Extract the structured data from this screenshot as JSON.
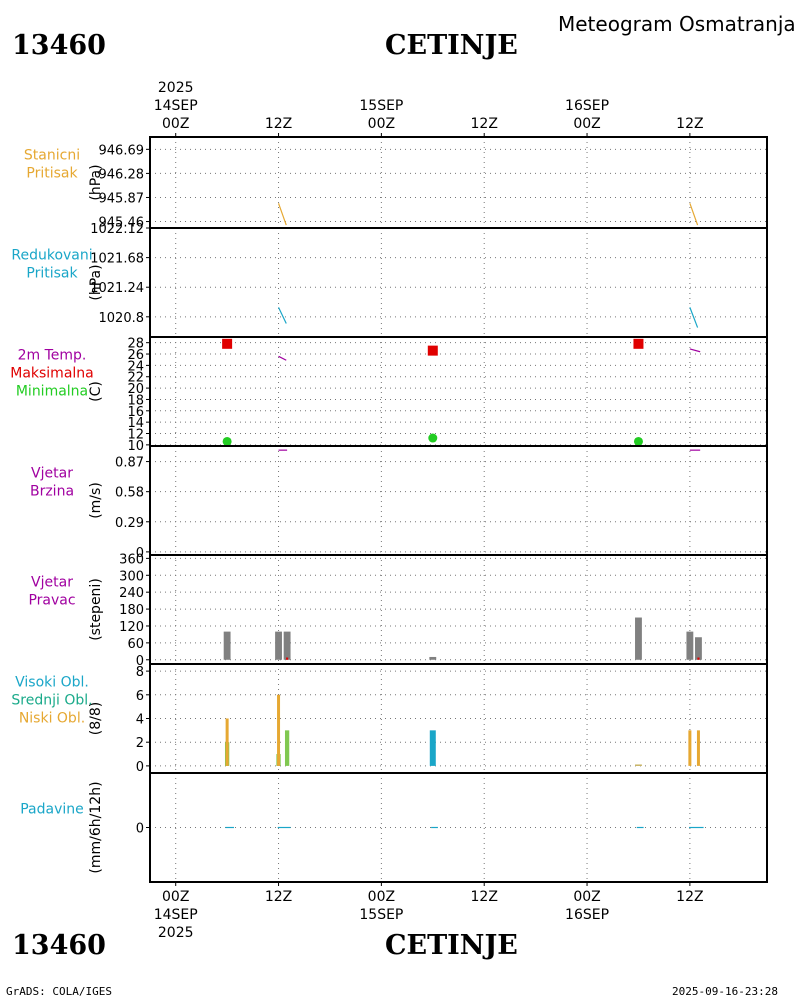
{
  "header": {
    "station_id": "13460",
    "station_name": "CETINJE",
    "chart_title": "Meteogram Osmatranja"
  },
  "footer": {
    "station_id": "13460",
    "station_name": "CETINJE",
    "credit": "GrADS: COLA/IGES",
    "timestamp": "2025-09-16-23:28"
  },
  "colors": {
    "stanicni": "#e6a832",
    "redukovani": "#1aa6c8",
    "tmax": "#e00000",
    "tmin": "#22cc22",
    "wind": "#a000a0",
    "grey": "#808080",
    "high_cloud": "#1aa6c8",
    "mid_cloud": "#80c850",
    "low_cloud": "#e6a832",
    "precip": "#1aa6c8"
  },
  "chart_data": {
    "type": "meteogram",
    "time_axis": {
      "top_year": "2025",
      "bottom_year": "2025",
      "hours": [
        0,
        12,
        24,
        36,
        48,
        60
      ],
      "hour_labels": [
        "00Z",
        "12Z",
        "00Z",
        "12Z",
        "00Z",
        "12Z"
      ],
      "date_labels": [
        {
          "hour": 0,
          "label": "14SEP"
        },
        {
          "hour": 24,
          "label": "15SEP"
        },
        {
          "hour": 48,
          "label": "16SEP"
        }
      ],
      "range": [
        -3,
        69
      ]
    },
    "panels": [
      {
        "id": "stanicni",
        "labels": [
          {
            "text": "Stanicni",
            "color": "#e6a832"
          },
          {
            "text": "Pritisak",
            "color": "#e6a832"
          }
        ],
        "unit": "(hPa)",
        "ylim": [
          945.35,
          946.9
        ],
        "ticks": [
          945.46,
          945.87,
          946.28,
          946.69
        ],
        "tick_labels": [
          "945.46",
          "945.87",
          "946.28",
          "946.69"
        ],
        "series": [
          {
            "kind": "segment",
            "color": "#e6a832",
            "points": [
              [
                12.0,
                945.77
              ],
              [
                12.9,
                945.4
              ]
            ]
          },
          {
            "kind": "segment",
            "color": "#e6a832",
            "points": [
              [
                60.0,
                945.77
              ],
              [
                60.9,
                945.4
              ]
            ]
          }
        ]
      },
      {
        "id": "redukovani",
        "labels": [
          {
            "text": "Redukovani",
            "color": "#1aa6c8"
          },
          {
            "text": "Pritisak",
            "color": "#1aa6c8"
          }
        ],
        "unit": "(hPa)",
        "ylim": [
          1020.5,
          1022.12
        ],
        "ticks": [
          1020.8,
          1021.24,
          1021.68,
          1022.12
        ],
        "tick_labels": [
          "1020.8",
          "1021.24",
          "1021.68",
          "1022.12"
        ],
        "series": [
          {
            "kind": "segment",
            "color": "#1aa6c8",
            "points": [
              [
                12.0,
                1020.94
              ],
              [
                12.9,
                1020.7
              ]
            ]
          },
          {
            "kind": "segment",
            "color": "#1aa6c8",
            "points": [
              [
                60.0,
                1020.94
              ],
              [
                60.9,
                1020.64
              ]
            ]
          }
        ]
      },
      {
        "id": "temp",
        "labels": [
          {
            "text": "2m Temp.",
            "color": "#a000a0"
          },
          {
            "text": "Maksimalna",
            "color": "#e00000"
          },
          {
            "text": "Minimalna",
            "color": "#22cc22"
          }
        ],
        "unit": "(C)",
        "ylim": [
          9.8,
          29
        ],
        "ticks": [
          10,
          12,
          14,
          16,
          18,
          20,
          22,
          24,
          26,
          28
        ],
        "tick_labels": [
          "10",
          "12",
          "14",
          "16",
          "18",
          "20",
          "22",
          "24",
          "26",
          "28"
        ],
        "series": [
          {
            "kind": "square",
            "color": "#e00000",
            "name": "Maksimalna",
            "points": [
              [
                6,
                27.8
              ],
              [
                30,
                26.6
              ],
              [
                54,
                27.8
              ]
            ]
          },
          {
            "kind": "dot",
            "color": "#22cc22",
            "name": "Minimalna",
            "points": [
              [
                6,
                10.6
              ],
              [
                30,
                11.2
              ],
              [
                54,
                10.6
              ]
            ]
          },
          {
            "kind": "segment",
            "color": "#a000a0",
            "points": [
              [
                12.0,
                25.6
              ],
              [
                12.9,
                24.9
              ]
            ]
          },
          {
            "kind": "segment",
            "color": "#a000a0",
            "points": [
              [
                60.0,
                26.9
              ],
              [
                61.2,
                26.4
              ]
            ]
          }
        ]
      },
      {
        "id": "brzina",
        "labels": [
          {
            "text": "Vjetar",
            "color": "#a000a0"
          },
          {
            "text": "Brzina",
            "color": "#a000a0"
          }
        ],
        "unit": "(m/s)",
        "ylim": [
          -0.03,
          1.02
        ],
        "ticks": [
          0,
          0.29,
          0.58,
          0.87
        ],
        "tick_labels": [
          "0",
          "0.29",
          "0.58",
          "0.87"
        ],
        "series": [
          {
            "kind": "segment",
            "color": "#a000a0",
            "points": [
              [
                12.0,
                0.98
              ],
              [
                13.0,
                0.98
              ]
            ]
          },
          {
            "kind": "segment",
            "color": "#a000a0",
            "points": [
              [
                60.0,
                0.98
              ],
              [
                61.2,
                0.98
              ]
            ]
          }
        ]
      },
      {
        "id": "pravac",
        "labels": [
          {
            "text": "Vjetar",
            "color": "#a000a0"
          },
          {
            "text": "Pravac",
            "color": "#a000a0"
          }
        ],
        "unit": "(stepeni)",
        "ylim": [
          -15,
          372
        ],
        "ticks": [
          0,
          60,
          120,
          180,
          240,
          300,
          360
        ],
        "tick_labels": [
          "0",
          "60",
          "120",
          "180",
          "240",
          "300",
          "360"
        ],
        "series": [
          {
            "kind": "bars",
            "color": "#808080",
            "width": 0.8,
            "points": [
              [
                6,
                100
              ],
              [
                12,
                100
              ],
              [
                13,
                100
              ],
              [
                30,
                10
              ],
              [
                54,
                150
              ],
              [
                60,
                100
              ],
              [
                61,
                80
              ]
            ]
          },
          {
            "kind": "bars",
            "color": "#e00000",
            "width": 0.25,
            "points": [
              [
                13,
                8
              ],
              [
                61,
                8
              ]
            ]
          }
        ]
      },
      {
        "id": "oblaci",
        "labels": [
          {
            "text": "Visoki Obl.",
            "color": "#1aa6c8"
          },
          {
            "text": "Srednji Obl.",
            "color": "#1aaa8a"
          },
          {
            "text": "Niski Obl.",
            "color": "#e6a832"
          }
        ],
        "unit": "(8/8)",
        "ylim": [
          -0.6,
          8.6
        ],
        "ticks": [
          0,
          2,
          4,
          6,
          8
        ],
        "tick_labels": [
          "0",
          "2",
          "4",
          "6",
          "8"
        ],
        "series": [
          {
            "kind": "bars",
            "color": "#80c850",
            "name": "Srednji",
            "width": 0.5,
            "points": [
              [
                6,
                2
              ],
              [
                12,
                1
              ],
              [
                13,
                3
              ]
            ]
          },
          {
            "kind": "bars",
            "color": "#e6a832",
            "name": "Niski",
            "width": 0.35,
            "points": [
              [
                6,
                4
              ],
              [
                12,
                6
              ],
              [
                60,
                3
              ],
              [
                61,
                3
              ]
            ]
          },
          {
            "kind": "bars",
            "color": "#1aa6c8",
            "name": "Visoki",
            "width": 0.7,
            "points": [
              [
                30,
                3
              ]
            ]
          },
          {
            "kind": "bars",
            "color": "#c8b464",
            "width": 0.8,
            "points": [
              [
                54,
                0.12
              ]
            ]
          }
        ]
      },
      {
        "id": "padavine",
        "labels": [
          {
            "text": "Padavine",
            "color": "#1aa6c8"
          }
        ],
        "unit": "(mm/6h/12h)",
        "ylim": [
          -1,
          1
        ],
        "ticks": [
          0
        ],
        "tick_labels": [
          "0"
        ],
        "series": [
          {
            "kind": "segment",
            "color": "#1aa6c8",
            "points": [
              [
                5.8,
                0
              ],
              [
                6.8,
                0
              ]
            ]
          },
          {
            "kind": "segment",
            "color": "#1aa6c8",
            "points": [
              [
                11.9,
                0
              ],
              [
                13.4,
                0
              ]
            ]
          },
          {
            "kind": "segment",
            "color": "#1aa6c8",
            "points": [
              [
                29.8,
                0
              ],
              [
                30.6,
                0
              ]
            ]
          },
          {
            "kind": "segment",
            "color": "#1aa6c8",
            "points": [
              [
                53.8,
                0
              ],
              [
                54.6,
                0
              ]
            ]
          },
          {
            "kind": "segment",
            "color": "#1aa6c8",
            "points": [
              [
                59.9,
                0
              ],
              [
                61.6,
                0
              ]
            ]
          }
        ]
      }
    ]
  }
}
